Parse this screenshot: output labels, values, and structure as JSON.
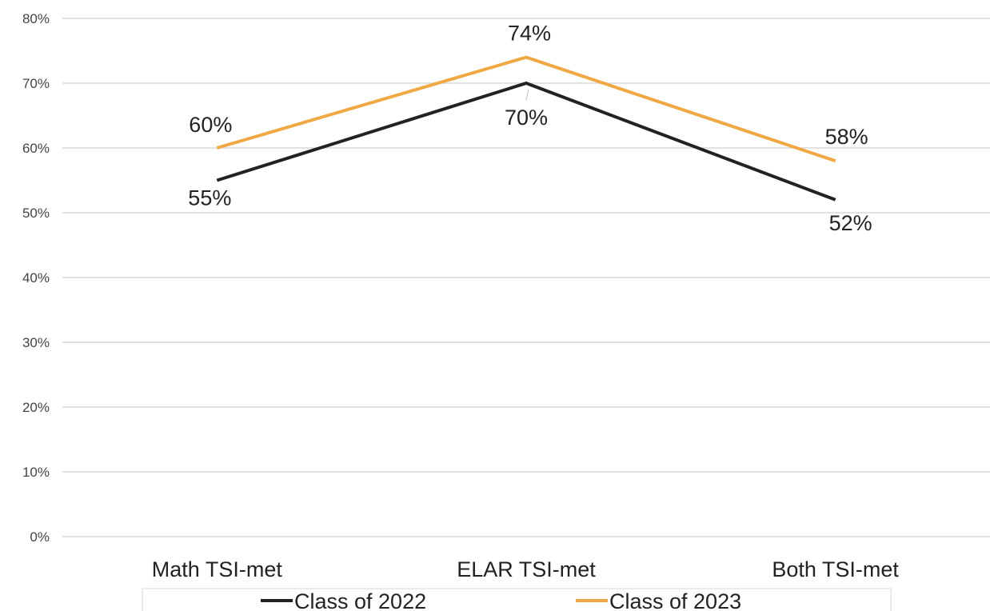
{
  "chart_data": {
    "type": "line",
    "title": "",
    "xlabel": "",
    "ylabel": "",
    "categories": [
      "Math TSI-met",
      "ELAR TSI-met",
      "Both TSI-met"
    ],
    "ylim": [
      0,
      80
    ],
    "yticks": [
      0,
      10,
      20,
      30,
      40,
      50,
      60,
      70,
      80
    ],
    "ytick_labels": [
      "0%",
      "10%",
      "20%",
      "30%",
      "40%",
      "50%",
      "60%",
      "70%",
      "80%"
    ],
    "grid": true,
    "legend_position": "bottom",
    "series": [
      {
        "name": "Class of 2022",
        "color": "#222222",
        "values": [
          55,
          70,
          52
        ],
        "labels": [
          "55%",
          "70%",
          "52%"
        ]
      },
      {
        "name": "Class of 2023",
        "color": "#f0a844",
        "values": [
          60,
          74,
          58
        ],
        "labels": [
          "60%",
          "74%",
          "58%"
        ]
      }
    ]
  }
}
